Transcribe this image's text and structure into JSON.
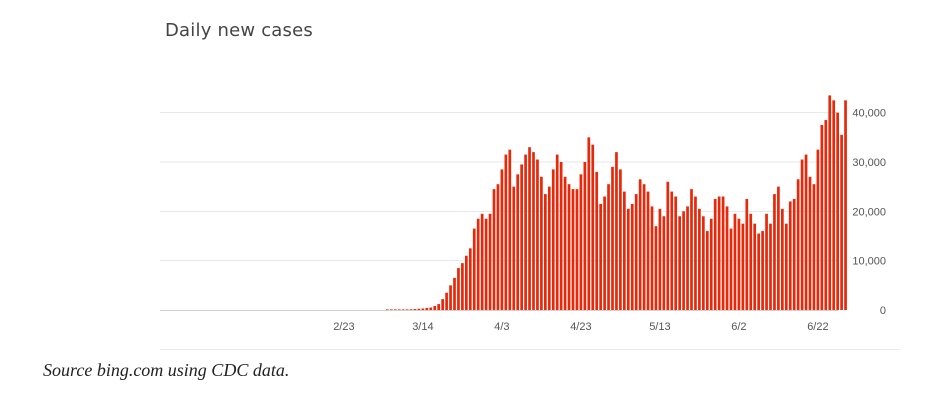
{
  "chart": {
    "title": "Daily new cases",
    "caption": "Source bing.com using CDC data."
  },
  "colors": {
    "bar": "#e8280a",
    "grid": "#e6e6e6",
    "axis_text": "#555555"
  },
  "chart_data": {
    "type": "bar",
    "title": "Daily new cases",
    "xlabel": "",
    "ylabel": "",
    "ylim": [
      0,
      45000
    ],
    "y_ticks": [
      {
        "value": 0,
        "label": "0"
      },
      {
        "value": 10000,
        "label": "10,000"
      },
      {
        "value": 20000,
        "label": "20,000"
      },
      {
        "value": 30000,
        "label": "30,000"
      },
      {
        "value": 40000,
        "label": "40,000"
      }
    ],
    "x_ticks": [
      {
        "index": 29,
        "label": "2/23"
      },
      {
        "index": 49,
        "label": "3/14"
      },
      {
        "index": 69,
        "label": "4/3"
      },
      {
        "index": 89,
        "label": "4/23"
      },
      {
        "index": 109,
        "label": "5/13"
      },
      {
        "index": 129,
        "label": "6/2"
      },
      {
        "index": 149,
        "label": "6/22"
      }
    ],
    "y_axis_position": "right",
    "grid": true,
    "legend": "none",
    "values": [
      0,
      0,
      0,
      0,
      0,
      0,
      0,
      0,
      0,
      0,
      0,
      0,
      0,
      0,
      0,
      0,
      0,
      0,
      0,
      0,
      0,
      0,
      0,
      0,
      0,
      0,
      0,
      0,
      0,
      0,
      0,
      0,
      0,
      0,
      0,
      0,
      0,
      0,
      0,
      0,
      10,
      20,
      30,
      50,
      80,
      120,
      150,
      200,
      250,
      300,
      400,
      500,
      800,
      1200,
      2200,
      3500,
      5000,
      6500,
      8500,
      9500,
      11000,
      12500,
      16500,
      18500,
      19500,
      18500,
      19500,
      24500,
      25500,
      28500,
      31500,
      32500,
      25000,
      27500,
      29500,
      31500,
      33000,
      32000,
      30500,
      27000,
      23500,
      25000,
      28500,
      31500,
      30000,
      27000,
      25500,
      24500,
      24500,
      27500,
      30000,
      35000,
      33500,
      28000,
      21500,
      23000,
      25500,
      29000,
      32000,
      28500,
      24000,
      20500,
      21500,
      23500,
      26500,
      25500,
      24000,
      21000,
      17000,
      20500,
      19000,
      26000,
      24000,
      23000,
      19000,
      20000,
      21000,
      24500,
      23000,
      20500,
      19000,
      16000,
      18500,
      22500,
      23000,
      23000,
      21000,
      16500,
      19500,
      18500,
      17500,
      22500,
      19500,
      17500,
      15500,
      16000,
      19500,
      17500,
      23500,
      25000,
      20500,
      17500,
      22000,
      22500,
      26500,
      30500,
      31500,
      27000,
      25500,
      32500,
      37500,
      38500,
      43500,
      42500,
      40000,
      35500,
      42500
    ]
  }
}
